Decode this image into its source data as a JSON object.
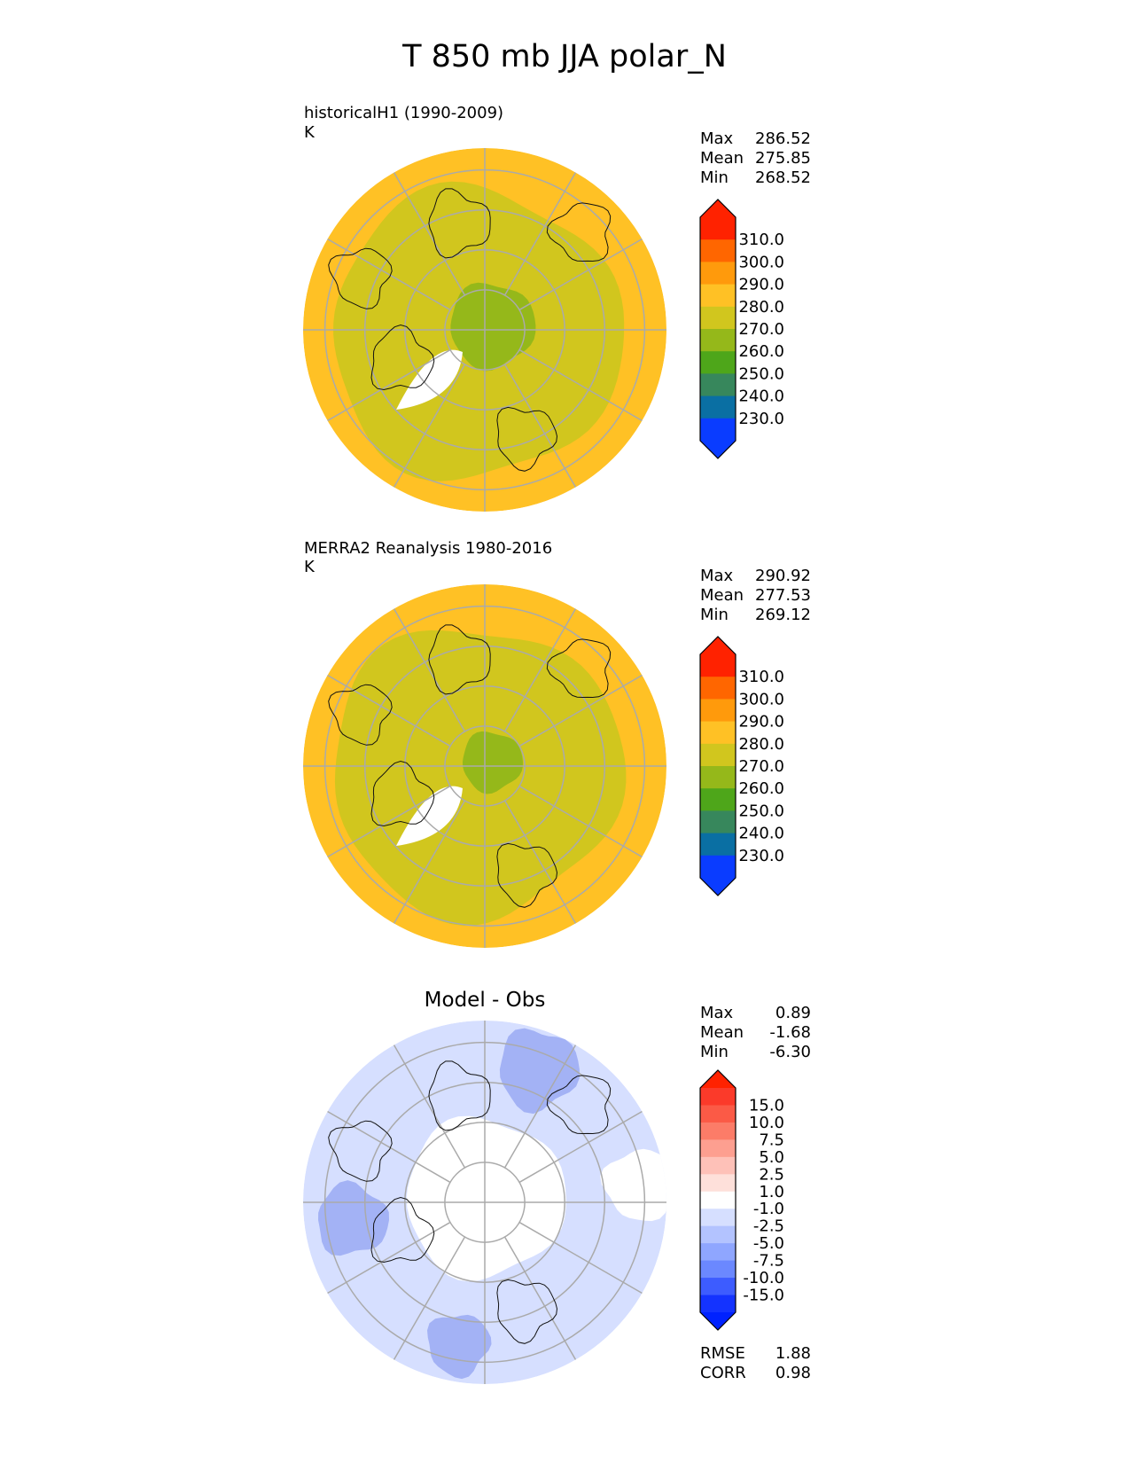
{
  "figure": {
    "title": "T 850 mb JJA polar_N"
  },
  "chart_data": [
    {
      "type": "heatmap",
      "projection": "north-polar-stereographic",
      "title": "",
      "subtitle": "historicalH1 (1990-2009)",
      "units": "K",
      "stats": [
        {
          "label": "Max",
          "value": "286.52"
        },
        {
          "label": "Mean",
          "value": "275.85"
        },
        {
          "label": "Min",
          "value": "268.52"
        }
      ],
      "colorbar": {
        "extend": "both",
        "ticks": [
          "310.0",
          "300.0",
          "290.0",
          "280.0",
          "270.0",
          "260.0",
          "250.0",
          "240.0",
          "230.0"
        ],
        "colors": [
          "#ff2200",
          "#ff6600",
          "#ff9a0c",
          "#ffc125",
          "#d1c61e",
          "#95b81a",
          "#4ea61a",
          "#37875c",
          "#0a6fa3",
          "#0a3cff"
        ],
        "arrow_top_color": "#ff2200",
        "arrow_bottom_color": "#0a3cff"
      },
      "fields": {
        "land_color": "#d1c61e",
        "ocean_color": "#ffc125",
        "pole_color": "#95b81a",
        "missing_color": "#ffffff"
      }
    },
    {
      "type": "heatmap",
      "projection": "north-polar-stereographic",
      "title": "",
      "subtitle": "MERRA2 Reanalysis 1980-2016",
      "units": "K",
      "stats": [
        {
          "label": "Max",
          "value": "290.92"
        },
        {
          "label": "Mean",
          "value": "277.53"
        },
        {
          "label": "Min",
          "value": "269.12"
        }
      ],
      "colorbar": {
        "extend": "both",
        "ticks": [
          "310.0",
          "300.0",
          "290.0",
          "280.0",
          "270.0",
          "260.0",
          "250.0",
          "240.0",
          "230.0"
        ],
        "colors": [
          "#ff2200",
          "#ff6600",
          "#ff9a0c",
          "#ffc125",
          "#d1c61e",
          "#95b81a",
          "#4ea61a",
          "#37875c",
          "#0a6fa3",
          "#0a3cff"
        ],
        "arrow_top_color": "#ff2200",
        "arrow_bottom_color": "#0a3cff"
      },
      "fields": {
        "land_color": "#d1c61e",
        "ocean_color": "#ffc125",
        "pole_color": "#95b81a",
        "missing_color": "#ffffff"
      }
    },
    {
      "type": "heatmap",
      "projection": "north-polar-stereographic",
      "title": "Model - Obs",
      "subtitle": "",
      "units": "",
      "stats": [
        {
          "label": "Max",
          "value": "0.89"
        },
        {
          "label": "Mean",
          "value": "-1.68"
        },
        {
          "label": "Min",
          "value": "-6.30"
        }
      ],
      "metrics": [
        {
          "label": "RMSE",
          "value": "1.88"
        },
        {
          "label": "CORR",
          "value": "0.98"
        }
      ],
      "colorbar": {
        "extend": "both",
        "ticks": [
          "15.0",
          "10.0",
          "7.5",
          "5.0",
          "2.5",
          "1.0",
          "-1.0",
          "-2.5",
          "-5.0",
          "-7.5",
          "-10.0",
          "-15.0"
        ],
        "colors": [
          "#fb3a2a",
          "#fb5a46",
          "#fc7c68",
          "#fd9f90",
          "#fec1b8",
          "#fee0da",
          "#ffffff",
          "#d6dfff",
          "#b3c3ff",
          "#8fa6ff",
          "#6b88ff",
          "#3d5cff",
          "#1433ff"
        ],
        "arrow_top_color": "#ff2200",
        "arrow_bottom_color": "#0022ff"
      },
      "fields": {
        "base_color": "#d6dfff",
        "pole_color": "#ffffff",
        "strong_color": "#a3b2f5"
      }
    }
  ]
}
